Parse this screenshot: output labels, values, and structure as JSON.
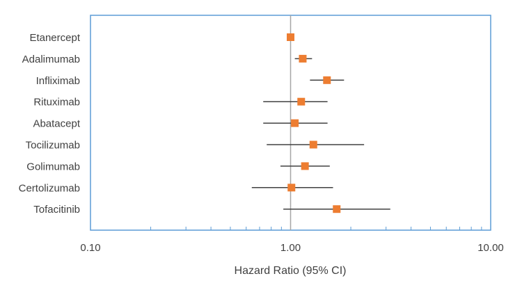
{
  "chart_data": {
    "type": "scatter",
    "subtype": "forest-plot",
    "title": "",
    "xlabel": "Hazard Ratio (95% CI)",
    "ylabel": "",
    "x_scale": "log",
    "xlim": [
      0.1,
      10.0
    ],
    "x_ticks": [
      {
        "value": 0.1,
        "label": "0.10"
      },
      {
        "value": 1.0,
        "label": "1.00"
      },
      {
        "value": 10.0,
        "label": "10.00"
      }
    ],
    "reference_line": 1.0,
    "grid": false,
    "legend": "none",
    "categories": [
      "Etanercept",
      "Adalimumab",
      "Infliximab",
      "Rituximab",
      "Abatacept",
      "Tocilizumab",
      "Golimumab",
      "Certolizumab",
      "Tofacitinib"
    ],
    "series": [
      {
        "hr": [
          1.0,
          1.15,
          1.52,
          1.13,
          1.05,
          1.3,
          1.18,
          1.01,
          1.7
        ],
        "lower": [
          1.0,
          1.05,
          1.25,
          0.73,
          0.73,
          0.76,
          0.89,
          0.64,
          0.92
        ],
        "upper": [
          1.0,
          1.28,
          1.85,
          1.53,
          1.53,
          2.33,
          1.57,
          1.63,
          3.15
        ]
      }
    ],
    "colors": {
      "marker": "#ED7D31",
      "whisker": "#404040",
      "frame": "#5B9BD5",
      "reference": "#A6A6A6",
      "text": "#404040"
    }
  }
}
